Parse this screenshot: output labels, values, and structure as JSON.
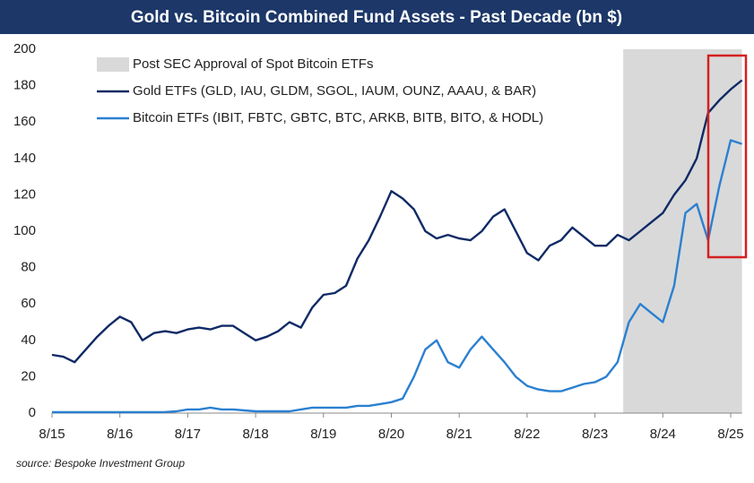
{
  "chart_data": {
    "type": "line",
    "title": "Gold vs. Bitcoin Combined Fund Assets - Past Decade (bn $)",
    "source": "source: Bespoke Investment Group",
    "x": [
      "8/15",
      "10/15",
      "12/15",
      "2/16",
      "4/16",
      "6/16",
      "8/16",
      "10/16",
      "12/16",
      "2/17",
      "4/17",
      "6/17",
      "8/17",
      "10/17",
      "12/17",
      "2/18",
      "4/18",
      "6/18",
      "8/18",
      "10/18",
      "12/18",
      "2/19",
      "4/19",
      "6/19",
      "8/19",
      "10/19",
      "12/19",
      "2/20",
      "4/20",
      "6/20",
      "8/20",
      "10/20",
      "12/20",
      "2/21",
      "4/21",
      "6/21",
      "8/21",
      "10/21",
      "12/21",
      "2/22",
      "4/22",
      "6/22",
      "8/22",
      "10/22",
      "12/22",
      "2/23",
      "4/23",
      "6/23",
      "8/23",
      "10/23",
      "12/23",
      "2/24",
      "4/24",
      "6/24",
      "8/24",
      "10/24",
      "12/24",
      "2/25",
      "4/25",
      "6/25",
      "8/25",
      "10/25"
    ],
    "series": [
      {
        "name": "Gold ETFs (GLD, IAU, GLDM, SGOL, IAUM, OUNZ, AAAU, & BAR)",
        "color": "#102a66",
        "values": [
          32,
          31,
          28,
          35,
          42,
          48,
          53,
          50,
          40,
          44,
          45,
          44,
          46,
          47,
          46,
          48,
          48,
          44,
          40,
          42,
          45,
          50,
          47,
          58,
          65,
          66,
          70,
          85,
          95,
          108,
          122,
          118,
          112,
          100,
          96,
          98,
          96,
          95,
          100,
          108,
          112,
          100,
          88,
          84,
          92,
          95,
          102,
          97,
          92,
          92,
          98,
          95,
          100,
          105,
          110,
          120,
          128,
          140,
          165,
          172,
          178,
          183
        ]
      },
      {
        "name": "Bitcoin ETFs (IBIT, FBTC, GBTC, BTC, ARKB, BITB, BITO, & HODL)",
        "color": "#2b80d0",
        "values": [
          0.5,
          0.5,
          0.5,
          0.5,
          0.5,
          0.5,
          0.5,
          0.5,
          0.5,
          0.5,
          0.6,
          1,
          2,
          2,
          3,
          2,
          2,
          1.5,
          1,
          1,
          1,
          1,
          2,
          3,
          3,
          3,
          3,
          4,
          4,
          5,
          6,
          8,
          20,
          35,
          40,
          28,
          25,
          35,
          42,
          35,
          28,
          20,
          15,
          13,
          12,
          12,
          14,
          16,
          17,
          20,
          28,
          50,
          60,
          55,
          50,
          70,
          110,
          115,
          95,
          125,
          150,
          148
        ]
      }
    ],
    "band": {
      "name": "Post SEC Approval of Spot Bitcoin ETFs",
      "start": "1/24",
      "color": "#d9d9d9"
    },
    "ylim": [
      0,
      200
    ],
    "yticks": [
      0,
      20,
      40,
      60,
      80,
      100,
      120,
      140,
      160,
      180,
      200
    ],
    "xticks": [
      "8/15",
      "8/16",
      "8/17",
      "8/18",
      "8/19",
      "8/20",
      "8/21",
      "8/22",
      "8/23",
      "8/24",
      "8/25"
    ],
    "grid": false
  }
}
